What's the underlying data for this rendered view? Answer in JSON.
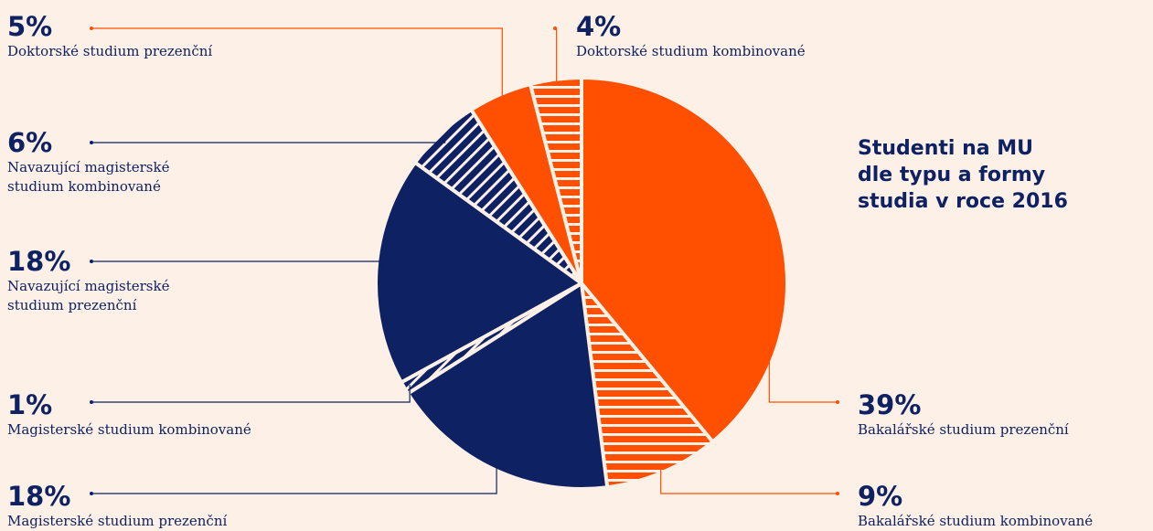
{
  "chart_data": {
    "type": "pie",
    "title": "Studenti na MU\ndle typu a formy\nstudia v roce 2016",
    "unit": "%",
    "slices": [
      {
        "pct_label": "39%",
        "value": 39,
        "name": "Bakalářské studium prezenční",
        "color": "#ff4f00",
        "pattern": "solid"
      },
      {
        "pct_label": "9%",
        "value": 9,
        "name": "Bakalářské studium kombinované",
        "color": "#ff4f00",
        "pattern": "striped"
      },
      {
        "pct_label": "18%",
        "value": 18,
        "name": "Magisterské studium prezenční",
        "color": "#0e2163",
        "pattern": "solid"
      },
      {
        "pct_label": "1%",
        "value": 1,
        "name": "Magisterské studium kombinované",
        "color": "#0e2163",
        "pattern": "striped"
      },
      {
        "pct_label": "18%",
        "value": 18,
        "name": "Navazující magisterské\nstudium prezenční",
        "color": "#0e2163",
        "pattern": "solid"
      },
      {
        "pct_label": "6%",
        "value": 6,
        "name": "Navazující magisterské\nstudium kombinované",
        "color": "#0e2163",
        "pattern": "striped"
      },
      {
        "pct_label": "5%",
        "value": 5,
        "name": "Doktorské studium prezenční",
        "color": "#ff4f00",
        "pattern": "solid"
      },
      {
        "pct_label": "4%",
        "value": 4,
        "name": "Doktorské studium kombinované",
        "color": "#ff4f00",
        "pattern": "striped"
      }
    ]
  }
}
